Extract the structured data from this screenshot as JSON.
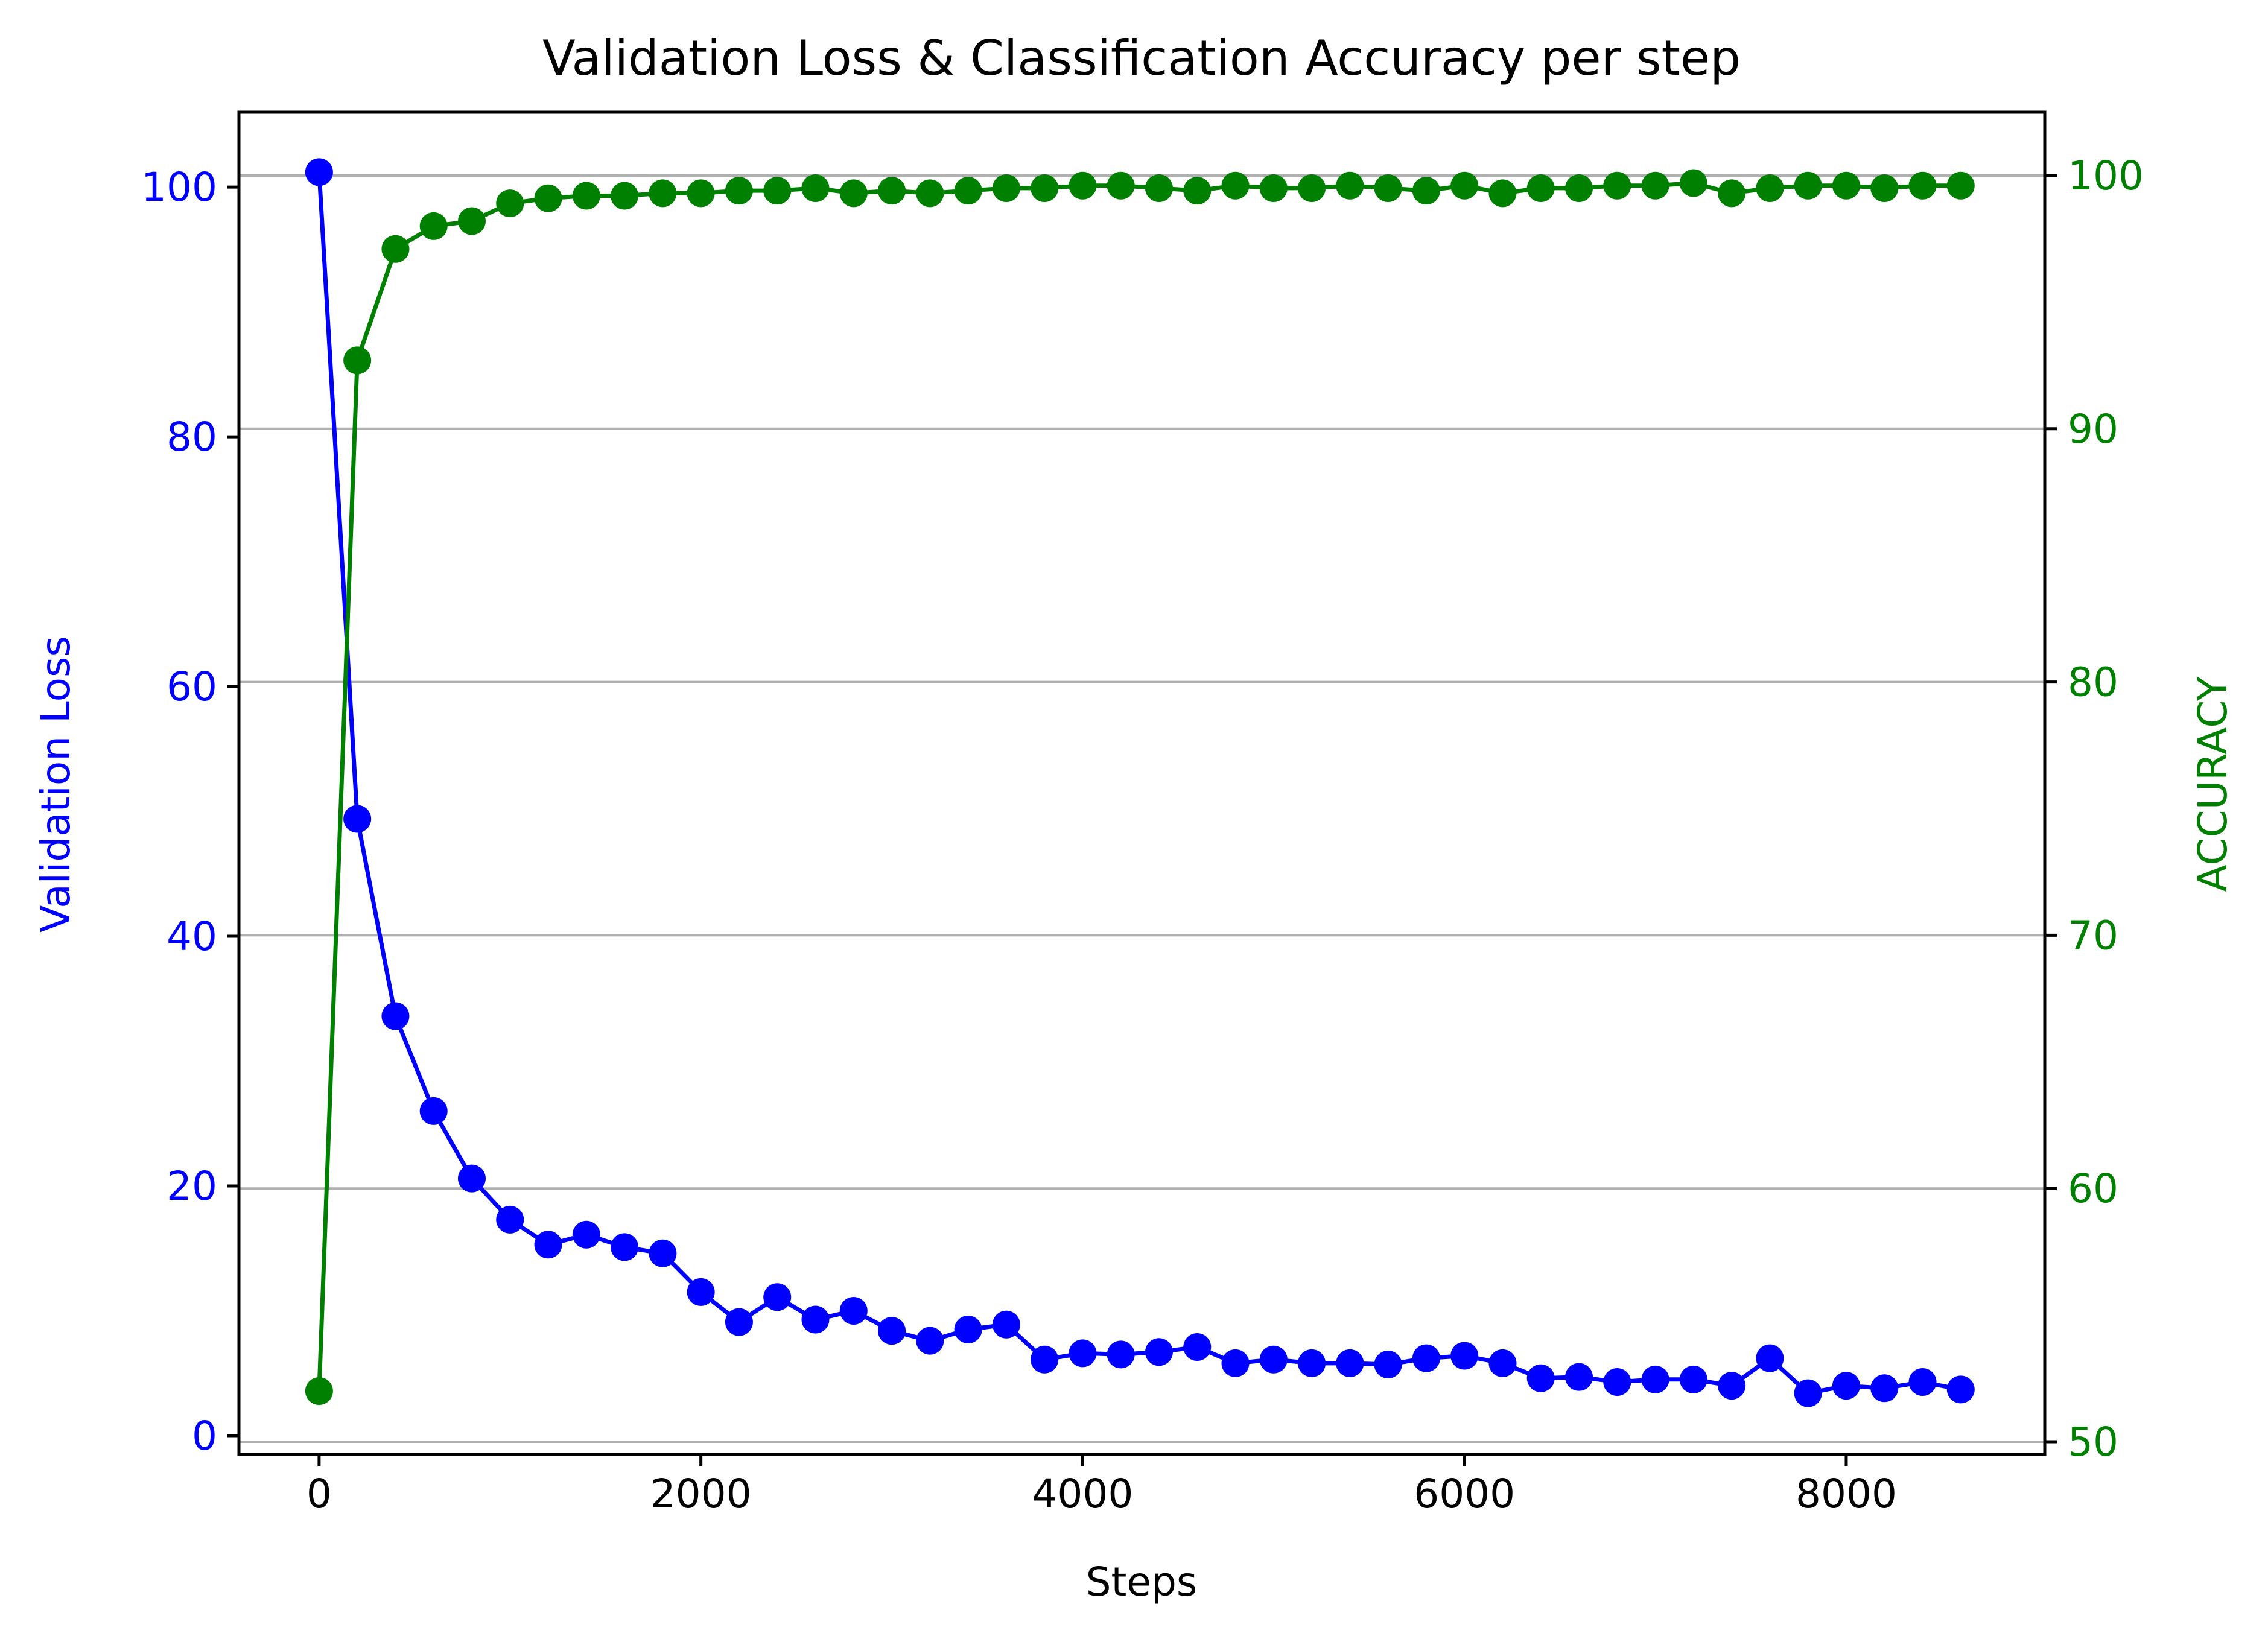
{
  "chart_data": {
    "type": "line",
    "title": "Validation Loss & Classification Accuracy per step",
    "xlabel": "Steps",
    "ylabel_left": "Validation Loss",
    "ylabel_right": "ACCURACY",
    "xlim": [
      -420,
      9040
    ],
    "ylim_left": [
      -1.5,
      106
    ],
    "ylim_right": [
      49.5,
      102.5
    ],
    "x_ticks": [
      0,
      2000,
      4000,
      6000,
      8000
    ],
    "y_ticks_left": [
      0,
      20,
      40,
      60,
      80,
      100
    ],
    "y_ticks_right": [
      50,
      60,
      70,
      80,
      90,
      100
    ],
    "grid": "horizontal-right-axis",
    "colors": {
      "loss": "#0000ff",
      "accuracy": "#008000",
      "grid": "#b0b0b0",
      "axis": "#000000"
    },
    "x": [
      0,
      200,
      400,
      600,
      800,
      1000,
      1200,
      1400,
      1600,
      1800,
      2000,
      2200,
      2400,
      2600,
      2800,
      3000,
      3200,
      3400,
      3600,
      3800,
      4000,
      4200,
      4400,
      4600,
      4800,
      5000,
      5200,
      5400,
      5600,
      5800,
      6000,
      6200,
      6400,
      6600,
      6800,
      7000,
      7200,
      7400,
      7600,
      7800,
      8000,
      8200,
      8400,
      8600
    ],
    "series": [
      {
        "axis": "left",
        "color": "#0000ff",
        "values": [
          101.2,
          49.4,
          33.6,
          26.0,
          20.6,
          17.3,
          15.3,
          16.1,
          15.1,
          14.6,
          11.5,
          9.1,
          11.1,
          9.3,
          10.0,
          8.4,
          7.6,
          8.5,
          8.9,
          6.1,
          6.6,
          6.5,
          6.7,
          7.1,
          5.8,
          6.1,
          5.8,
          5.8,
          5.7,
          6.2,
          6.4,
          5.8,
          4.6,
          4.7,
          4.3,
          4.5,
          4.5,
          4.0,
          6.2,
          3.4,
          4.0,
          3.8,
          4.3,
          3.7
        ]
      },
      {
        "axis": "right",
        "color": "#008000",
        "values": [
          52.0,
          92.7,
          97.1,
          98.0,
          98.2,
          98.9,
          99.1,
          99.2,
          99.2,
          99.3,
          99.3,
          99.4,
          99.4,
          99.5,
          99.3,
          99.4,
          99.3,
          99.4,
          99.5,
          99.5,
          99.6,
          99.6,
          99.5,
          99.4,
          99.6,
          99.5,
          99.5,
          99.6,
          99.5,
          99.4,
          99.6,
          99.3,
          99.5,
          99.5,
          99.6,
          99.6,
          99.7,
          99.3,
          99.5,
          99.6,
          99.6,
          99.5,
          99.6,
          99.6
        ]
      }
    ]
  }
}
